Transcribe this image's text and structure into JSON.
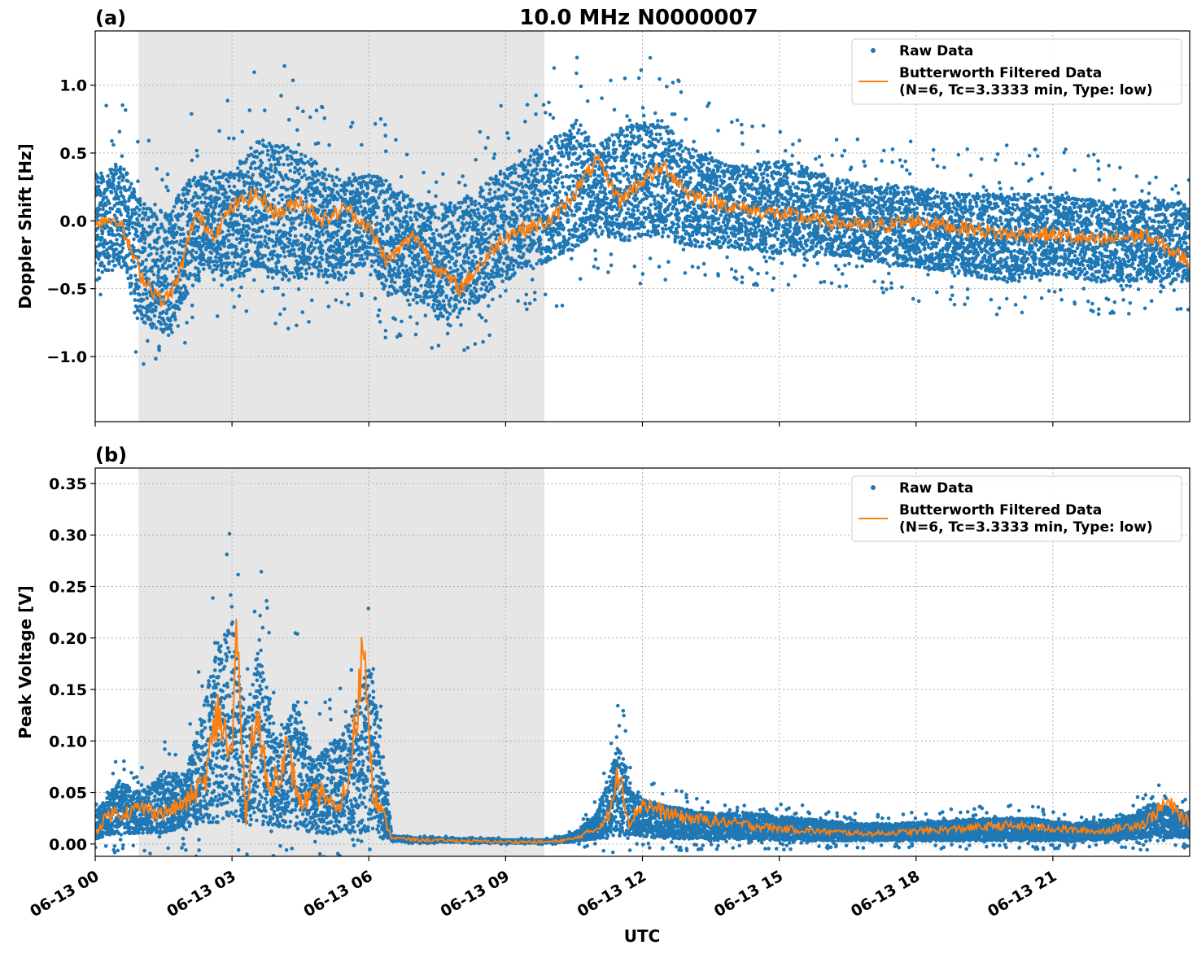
{
  "figure": {
    "title": "10.0 MHz N0000007",
    "xlabel": "UTC"
  },
  "colors": {
    "raw": "#1f77b4",
    "filtered": "#ff7f0e",
    "shade": "#e6e6e6"
  },
  "legend": {
    "raw_label": "Raw Data",
    "filtered_label_line1": "Butterworth Filtered Data",
    "filtered_label_line2": "(N=6, Tc=3.3333 min, Type: low)"
  },
  "chart_data": [
    {
      "type": "scatter",
      "panel_label": "(a)",
      "ylabel": "Doppler Shift [Hz]",
      "x_unit": "hours UTC on 06-13",
      "xlim": [
        0,
        24
      ],
      "ylim": [
        -1.48,
        1.4
      ],
      "yticks": [
        1.0,
        0.5,
        0.0,
        -0.5,
        -1.0
      ],
      "ytick_labels": [
        "1.0",
        "0.5",
        "0.0",
        "−0.5",
        "−1.0"
      ],
      "shaded_region": [
        0.95,
        9.85
      ],
      "grid": true,
      "legend_position": "top-right",
      "series": [
        {
          "name": "Raw Data",
          "kind": "points",
          "band": {
            "x": [
              0,
              0.6,
              1.0,
              1.6,
              2.0,
              2.4,
              3.0,
              3.6,
              4.2,
              4.8,
              5.4,
              6.0,
              6.4,
              7.0,
              7.6,
              8.2,
              8.8,
              9.4,
              10.0,
              10.6,
              11.0,
              11.6,
              12.4,
              13.0,
              14.0,
              15.0,
              16.0,
              17.0,
              18.0,
              19.0,
              20.0,
              21.0,
              22.0,
              23.0,
              24.0
            ],
            "low": [
              -0.45,
              -0.3,
              -0.75,
              -0.85,
              -0.55,
              -0.35,
              -0.45,
              -0.35,
              -0.45,
              -0.4,
              -0.45,
              -0.3,
              -0.55,
              -0.55,
              -0.75,
              -0.65,
              -0.5,
              -0.35,
              -0.3,
              -0.2,
              -0.1,
              -0.15,
              -0.1,
              -0.2,
              -0.2,
              -0.25,
              -0.25,
              -0.3,
              -0.35,
              -0.4,
              -0.45,
              -0.4,
              -0.45,
              -0.45,
              -0.45
            ],
            "high": [
              0.35,
              0.45,
              0.15,
              0.05,
              0.3,
              0.35,
              0.4,
              0.6,
              0.55,
              0.45,
              0.3,
              0.35,
              0.3,
              0.15,
              0.1,
              0.2,
              0.35,
              0.45,
              0.6,
              0.75,
              0.55,
              0.7,
              0.75,
              0.55,
              0.4,
              0.45,
              0.35,
              0.25,
              0.25,
              0.2,
              0.2,
              0.2,
              0.15,
              0.15,
              0.15
            ]
          }
        },
        {
          "name": "Butterworth Filtered Data",
          "kind": "line",
          "x": [
            0,
            0.5,
            1.0,
            1.5,
            1.8,
            2.2,
            2.6,
            3.0,
            3.5,
            4.0,
            4.5,
            5.0,
            5.5,
            6.0,
            6.4,
            7.0,
            7.5,
            8.0,
            8.5,
            9.0,
            9.5,
            10.0,
            10.5,
            11.0,
            11.5,
            12.0,
            12.5,
            13.0,
            13.5,
            14.0,
            15.0,
            16.0,
            17.0,
            18.0,
            19.0,
            20.0,
            21.0,
            22.0,
            23.0,
            24.0
          ],
          "y": [
            0.0,
            0.02,
            -0.4,
            -0.6,
            -0.45,
            0.05,
            -0.1,
            0.1,
            0.2,
            0.05,
            0.15,
            0.0,
            0.1,
            -0.05,
            -0.3,
            -0.1,
            -0.35,
            -0.5,
            -0.3,
            -0.1,
            -0.05,
            0.0,
            0.2,
            0.45,
            0.15,
            0.3,
            0.4,
            0.2,
            0.15,
            0.1,
            0.05,
            0.0,
            -0.05,
            0.0,
            -0.05,
            -0.1,
            -0.1,
            -0.15,
            -0.1,
            -0.3
          ]
        }
      ]
    },
    {
      "type": "scatter",
      "panel_label": "(b)",
      "ylabel": "Peak Voltage [V]",
      "x_unit": "hours UTC on 06-13",
      "xlim": [
        0,
        24
      ],
      "ylim": [
        -0.012,
        0.365
      ],
      "yticks": [
        0.35,
        0.3,
        0.25,
        0.2,
        0.15,
        0.1,
        0.05,
        0.0
      ],
      "ytick_labels": [
        "0.35",
        "0.30",
        "0.25",
        "0.20",
        "0.15",
        "0.10",
        "0.05",
        "0.00"
      ],
      "shaded_region": [
        0.95,
        9.85
      ],
      "grid": true,
      "legend_position": "top-right",
      "series": [
        {
          "name": "Raw Data",
          "kind": "points",
          "band": {
            "x": [
              0,
              0.5,
              1.0,
              1.5,
              2.0,
              2.3,
              2.6,
              3.0,
              3.3,
              3.6,
              4.0,
              4.4,
              4.8,
              5.2,
              5.6,
              6.0,
              6.3,
              6.5,
              7.0,
              8.0,
              9.0,
              10.0,
              10.5,
              11.0,
              11.5,
              11.8,
              12.2,
              12.8,
              13.5,
              14.5,
              15.5,
              16.5,
              17.5,
              18.5,
              19.5,
              20.5,
              21.5,
              22.5,
              23.2,
              24.0
            ],
            "low": [
              0.005,
              0.01,
              0.01,
              0.01,
              0.015,
              0.02,
              0.02,
              0.025,
              0.02,
              0.02,
              0.015,
              0.015,
              0.01,
              0.01,
              0.01,
              0.01,
              0.005,
              0.003,
              0.002,
              0.002,
              0.001,
              0.001,
              0.002,
              0.005,
              0.008,
              0.008,
              0.006,
              0.005,
              0.005,
              0.004,
              0.003,
              0.003,
              0.003,
              0.003,
              0.003,
              0.003,
              0.003,
              0.004,
              0.006,
              0.006
            ],
            "high": [
              0.03,
              0.06,
              0.05,
              0.07,
              0.07,
              0.12,
              0.18,
              0.22,
              0.12,
              0.2,
              0.1,
              0.14,
              0.08,
              0.1,
              0.12,
              0.18,
              0.1,
              0.008,
              0.006,
              0.005,
              0.004,
              0.004,
              0.01,
              0.03,
              0.1,
              0.05,
              0.04,
              0.035,
              0.03,
              0.03,
              0.025,
              0.02,
              0.02,
              0.022,
              0.025,
              0.025,
              0.02,
              0.025,
              0.04,
              0.03
            ]
          }
        },
        {
          "name": "Butterworth Filtered Data",
          "kind": "line",
          "x": [
            0,
            0.3,
            0.6,
            1.0,
            1.5,
            2.0,
            2.4,
            2.7,
            3.0,
            3.1,
            3.3,
            3.5,
            3.8,
            4.2,
            4.5,
            5.0,
            5.3,
            5.6,
            5.9,
            6.1,
            6.3,
            6.5,
            7.0,
            8.0,
            9.0,
            10.0,
            10.5,
            11.0,
            11.3,
            11.5,
            11.7,
            12.0,
            12.5,
            13.0,
            14.0,
            15.0,
            16.0,
            17.0,
            18.0,
            19.0,
            20.0,
            21.0,
            22.0,
            23.0,
            23.5,
            24.0
          ],
          "y": [
            0.01,
            0.03,
            0.03,
            0.035,
            0.03,
            0.04,
            0.06,
            0.13,
            0.08,
            0.21,
            0.02,
            0.14,
            0.05,
            0.09,
            0.04,
            0.05,
            0.03,
            0.07,
            0.2,
            0.05,
            0.03,
            0.006,
            0.004,
            0.003,
            0.002,
            0.002,
            0.005,
            0.015,
            0.03,
            0.075,
            0.02,
            0.04,
            0.03,
            0.025,
            0.02,
            0.015,
            0.012,
            0.01,
            0.012,
            0.015,
            0.018,
            0.015,
            0.012,
            0.02,
            0.04,
            0.02
          ]
        }
      ]
    }
  ],
  "xaxis": {
    "tick_hours": [
      0,
      3,
      6,
      9,
      12,
      15,
      18,
      21
    ],
    "tick_labels": [
      "06-13 00",
      "06-13 03",
      "06-13 06",
      "06-13 09",
      "06-13 12",
      "06-13 15",
      "06-13 18",
      "06-13 21"
    ]
  }
}
